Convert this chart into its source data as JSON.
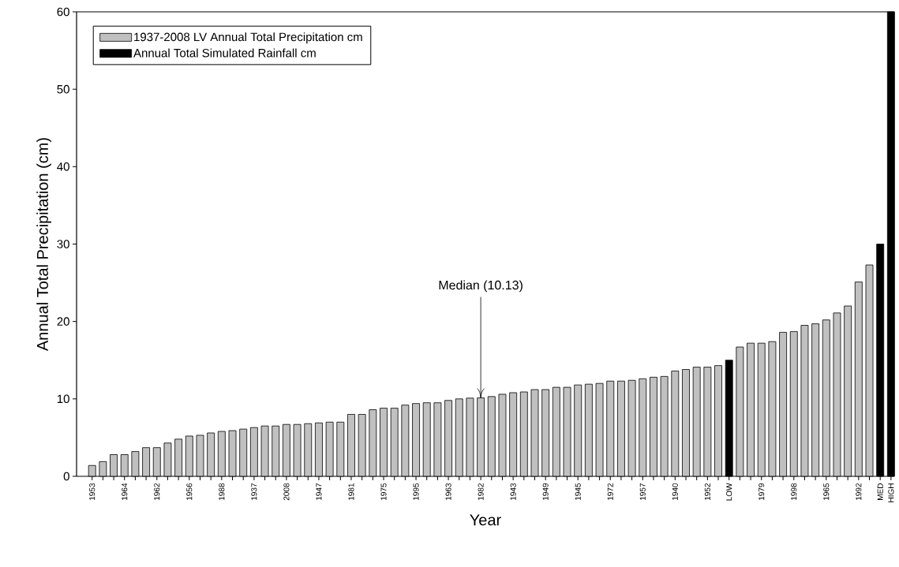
{
  "chart_data": {
    "type": "bar",
    "xlabel": "Year",
    "ylabel": "Annual Total Precipitation (cm)",
    "categories": [
      "1953",
      null,
      null,
      "1964",
      null,
      null,
      "1962",
      null,
      null,
      "1956",
      null,
      null,
      "1988",
      null,
      null,
      "1937",
      null,
      null,
      "2008",
      null,
      null,
      "1947",
      null,
      null,
      "1981",
      null,
      null,
      "1975",
      null,
      null,
      "1995",
      null,
      null,
      "1963",
      null,
      null,
      "1982",
      null,
      null,
      "1943",
      null,
      null,
      "1949",
      null,
      null,
      "1945",
      null,
      null,
      "1972",
      null,
      null,
      "1957",
      null,
      null,
      "1940",
      null,
      null,
      "1952",
      null,
      "LOW",
      null,
      null,
      "1979",
      null,
      null,
      "1998",
      null,
      null,
      "1965",
      null,
      null,
      "1992",
      null,
      "MED",
      "HIGH"
    ],
    "series": [
      {
        "name": "1937-2008 LV Annual Total Precipitation cm",
        "color": "#c0c0c0",
        "values": [
          1.4,
          1.9,
          2.8,
          2.8,
          3.2,
          3.7,
          3.7,
          4.3,
          4.8,
          5.2,
          5.3,
          5.6,
          5.8,
          5.9,
          6.1,
          6.3,
          6.5,
          6.5,
          6.7,
          6.7,
          6.8,
          6.9,
          7.0,
          7.0,
          8.0,
          8.0,
          8.6,
          8.8,
          8.8,
          9.2,
          9.4,
          9.5,
          9.5,
          9.8,
          10.0,
          10.1,
          10.13,
          10.3,
          10.6,
          10.8,
          10.9,
          11.2,
          11.2,
          11.5,
          11.5,
          11.8,
          11.9,
          12.0,
          12.3,
          12.3,
          12.4,
          12.6,
          12.8,
          12.9,
          13.6,
          13.8,
          14.1,
          14.1,
          14.3,
          null,
          16.7,
          17.2,
          17.2,
          17.4,
          18.6,
          18.7,
          19.5,
          19.7,
          20.2,
          21.1,
          22.0,
          25.1,
          27.3,
          null,
          null
        ]
      },
      {
        "name": "Annual Total Simulated Rainfall cm",
        "color": "#000000",
        "values": [
          null,
          null,
          null,
          null,
          null,
          null,
          null,
          null,
          null,
          null,
          null,
          null,
          null,
          null,
          null,
          null,
          null,
          null,
          null,
          null,
          null,
          null,
          null,
          null,
          null,
          null,
          null,
          null,
          null,
          null,
          null,
          null,
          null,
          null,
          null,
          null,
          null,
          null,
          null,
          null,
          null,
          null,
          null,
          null,
          null,
          null,
          null,
          null,
          null,
          null,
          null,
          null,
          null,
          null,
          null,
          null,
          null,
          null,
          null,
          15.0,
          null,
          null,
          null,
          null,
          null,
          null,
          null,
          null,
          null,
          null,
          null,
          null,
          null,
          30.0,
          60.0
        ]
      }
    ],
    "ylim": [
      0,
      60
    ],
    "yticks": [
      0,
      10,
      20,
      30,
      40,
      50,
      60
    ],
    "annotations": [
      {
        "text": "Median (10.13)",
        "x": "1982",
        "y": 10.13
      }
    ],
    "legend": "top left",
    "grid": false
  }
}
